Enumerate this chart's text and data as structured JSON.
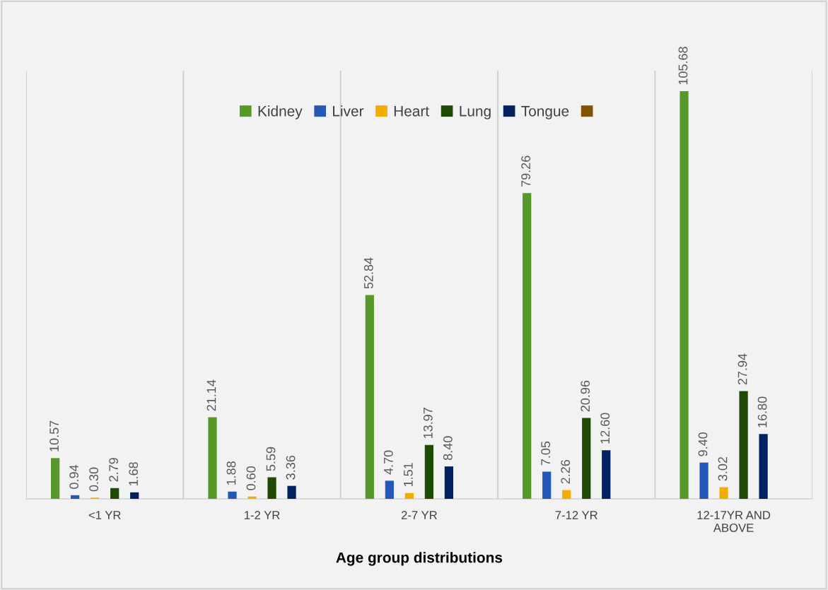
{
  "chart_data": {
    "type": "bar",
    "xlabel": "Age group distributions",
    "categories": [
      "<1 YR",
      "1-2 YR",
      "2-7 YR",
      "7-12 YR",
      "12-17YR AND\nABOVE"
    ],
    "series": [
      {
        "name": "Kidney",
        "color": "#56992a",
        "values": [
          10.57,
          21.14,
          52.84,
          79.26,
          105.68
        ],
        "value_labels": [
          "10.57",
          "21.14",
          "52.84",
          "79.26",
          "105.68"
        ]
      },
      {
        "name": "Liver",
        "color": "#2358b8",
        "values": [
          0.94,
          1.88,
          4.7,
          7.05,
          9.4
        ],
        "value_labels": [
          "0.94",
          "1.88",
          "4.70",
          "7.05",
          "9.40"
        ]
      },
      {
        "name": "Heart",
        "color": "#f5ab00",
        "values": [
          0.3,
          0.6,
          1.51,
          2.26,
          3.02
        ],
        "value_labels": [
          "0.30",
          "0.60",
          "1.51",
          "2.26",
          "3.02"
        ]
      },
      {
        "name": "Lung",
        "color": "#1f4a06",
        "values": [
          2.79,
          5.59,
          13.97,
          20.96,
          27.94
        ],
        "value_labels": [
          "2.79",
          "5.59",
          "13.97",
          "20.96",
          "27.94"
        ]
      },
      {
        "name": "Tongue",
        "color": "#012160",
        "values": [
          1.68,
          3.36,
          8.4,
          12.6,
          16.8
        ],
        "value_labels": [
          "1.68",
          "3.36",
          "8.40",
          "12.60",
          "16.80"
        ]
      },
      {
        "color": "#7f5400",
        "values": [
          null,
          null,
          null,
          null,
          null
        ]
      }
    ],
    "grid": "x",
    "legend": "top",
    "tick_labels": "x"
  }
}
